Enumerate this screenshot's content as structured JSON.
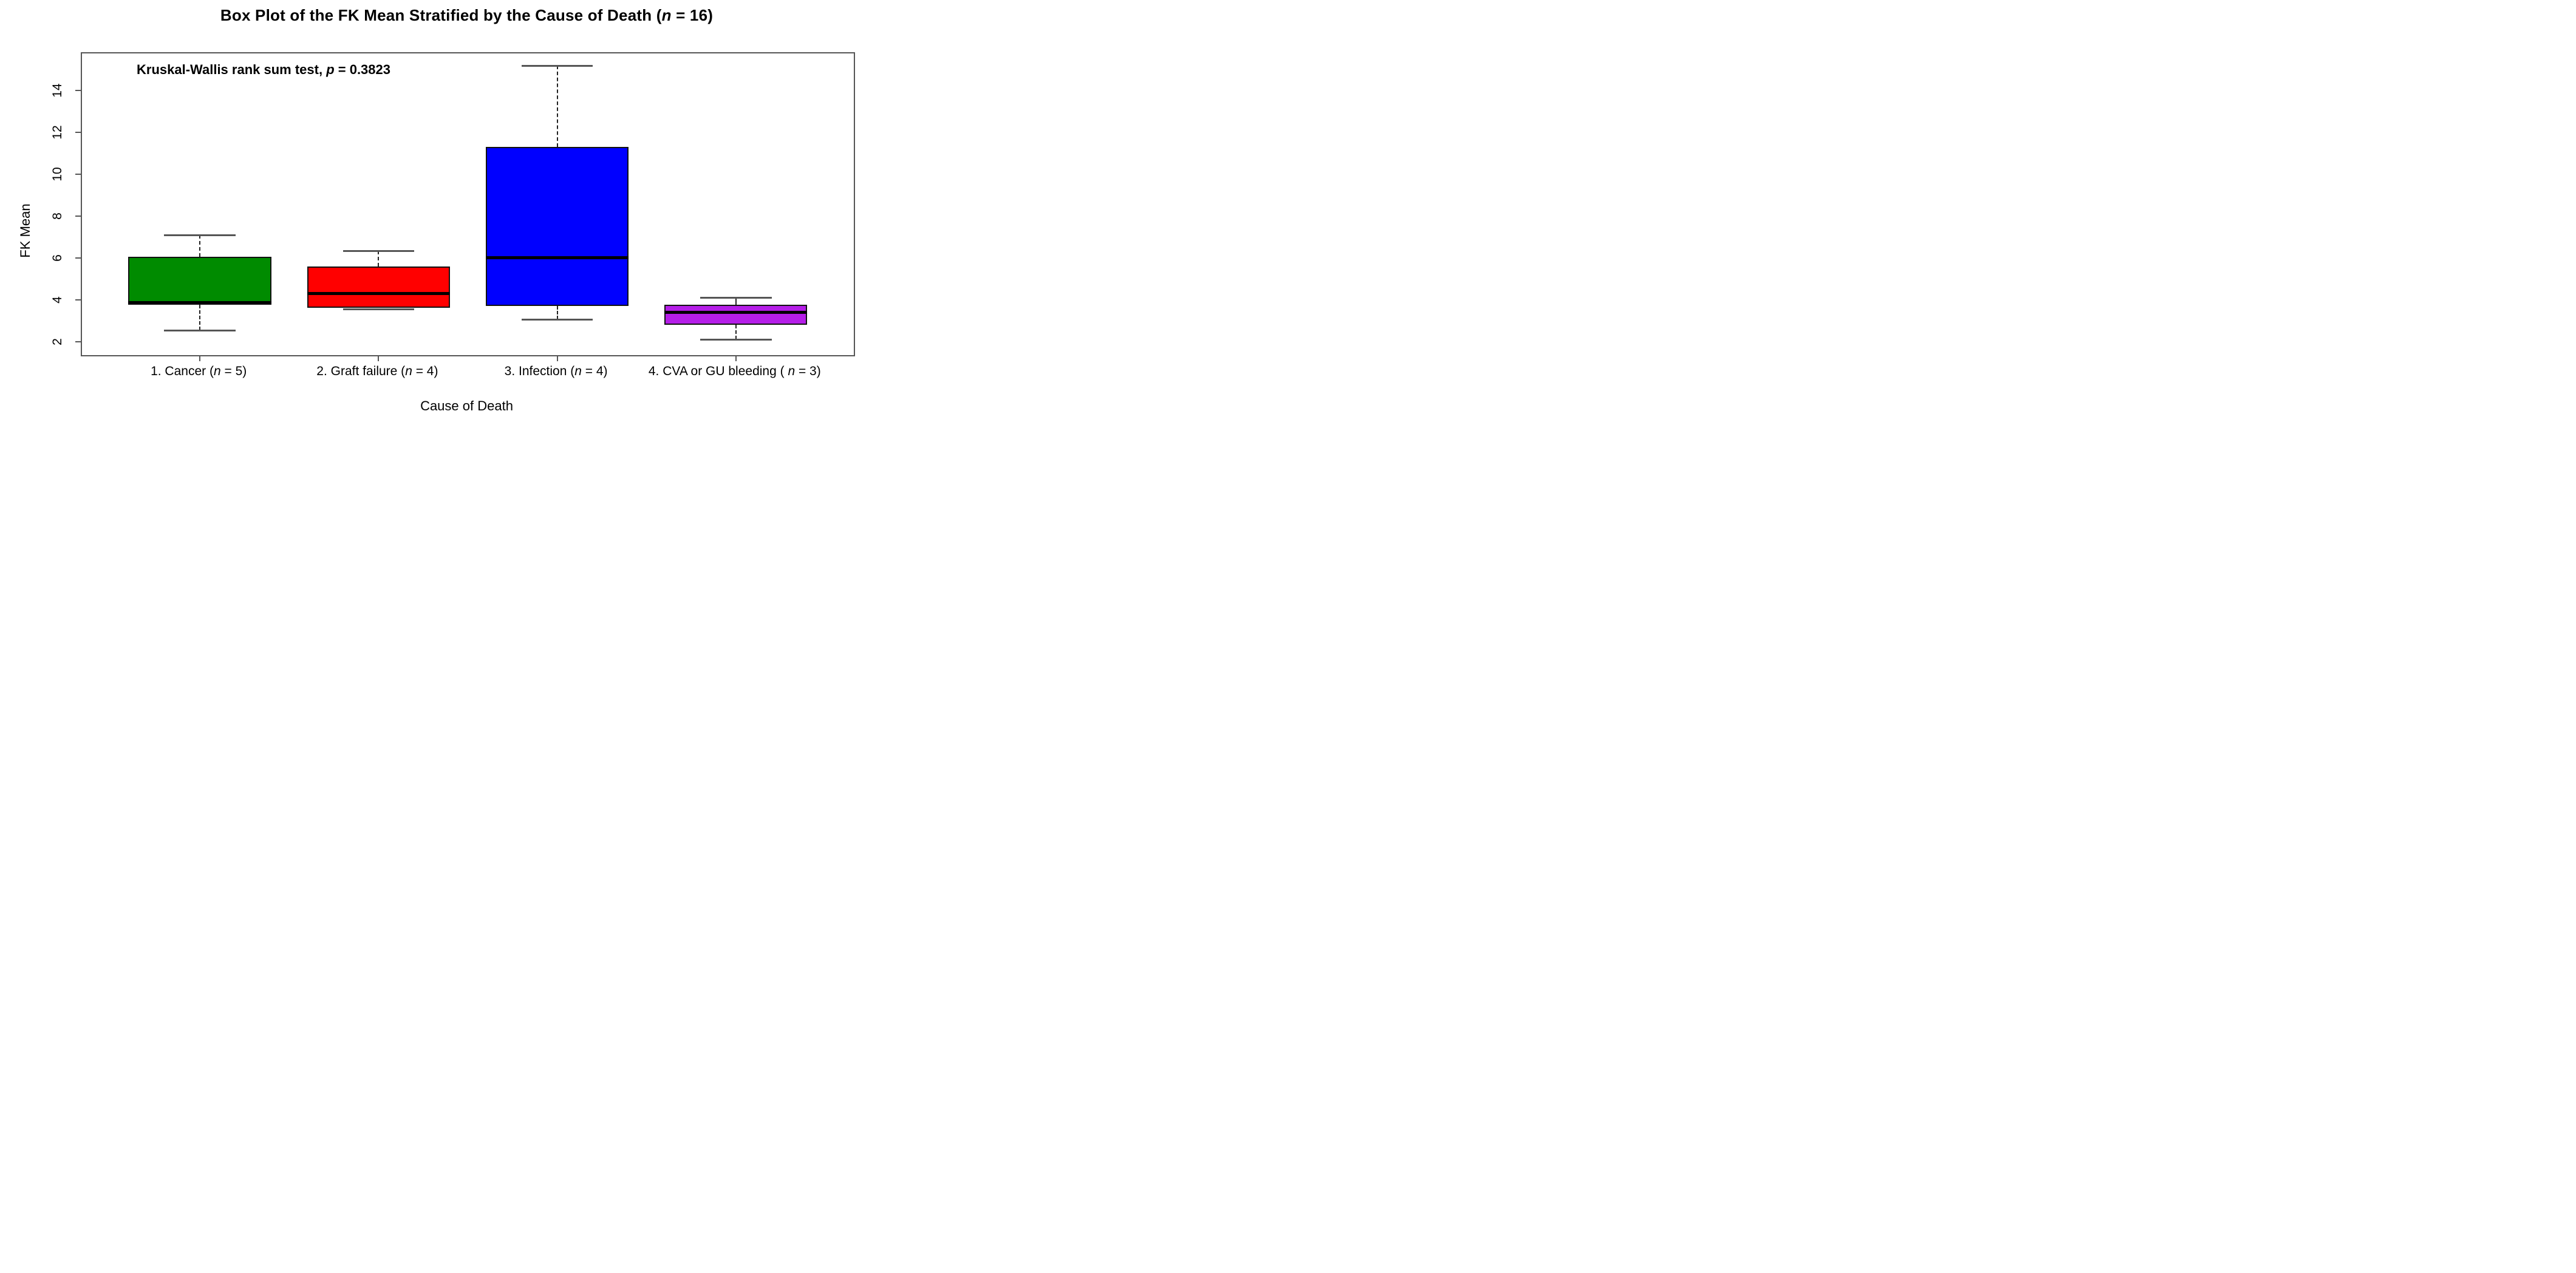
{
  "chart_data": {
    "type": "boxplot",
    "title": {
      "pre": "Box Plot of the FK Mean Stratified by the Cause of Death (",
      "italic": "n",
      "post": " = 16)"
    },
    "annotation": {
      "pre": "Kruskal-Wallis rank sum test, ",
      "italic": "p",
      "post": " = 0.3823"
    },
    "xlabel": "Cause of Death",
    "ylabel": "FK Mean",
    "y_ticks": [
      2,
      4,
      6,
      8,
      10,
      12,
      14
    ],
    "ylim": [
      1.35,
      15.78
    ],
    "xlim": [
      0.34,
      4.66
    ],
    "grid": false,
    "legend": "none",
    "italic_var": "n",
    "groups": [
      {
        "label_pre": "1. Cancer (",
        "label_post": " = 5)",
        "n": 5,
        "color": "#008B00",
        "whisker_low": 2.55,
        "q1": 3.75,
        "median": 3.85,
        "q3": 6.05,
        "whisker_high": 7.1
      },
      {
        "label_pre": "2. Graft failure (",
        "label_post": " = 4)",
        "n": 4,
        "color": "#FF0000",
        "whisker_low": 3.55,
        "q1": 3.6,
        "median": 4.3,
        "q3": 5.6,
        "whisker_high": 6.35
      },
      {
        "label_pre": "3. Infection (",
        "label_post": " = 4)",
        "n": 4,
        "color": "#0000FF",
        "whisker_low": 3.05,
        "q1": 3.7,
        "median": 6.0,
        "q3": 11.3,
        "whisker_high": 15.2
      },
      {
        "label_pre": "4. CVA or GU bleeding ( ",
        "label_post": " = 3)",
        "n": 3,
        "color": "#B51EE8",
        "whisker_low": 2.1,
        "q1": 2.8,
        "median": 3.4,
        "q3": 3.75,
        "whisker_high": 4.1
      }
    ]
  }
}
